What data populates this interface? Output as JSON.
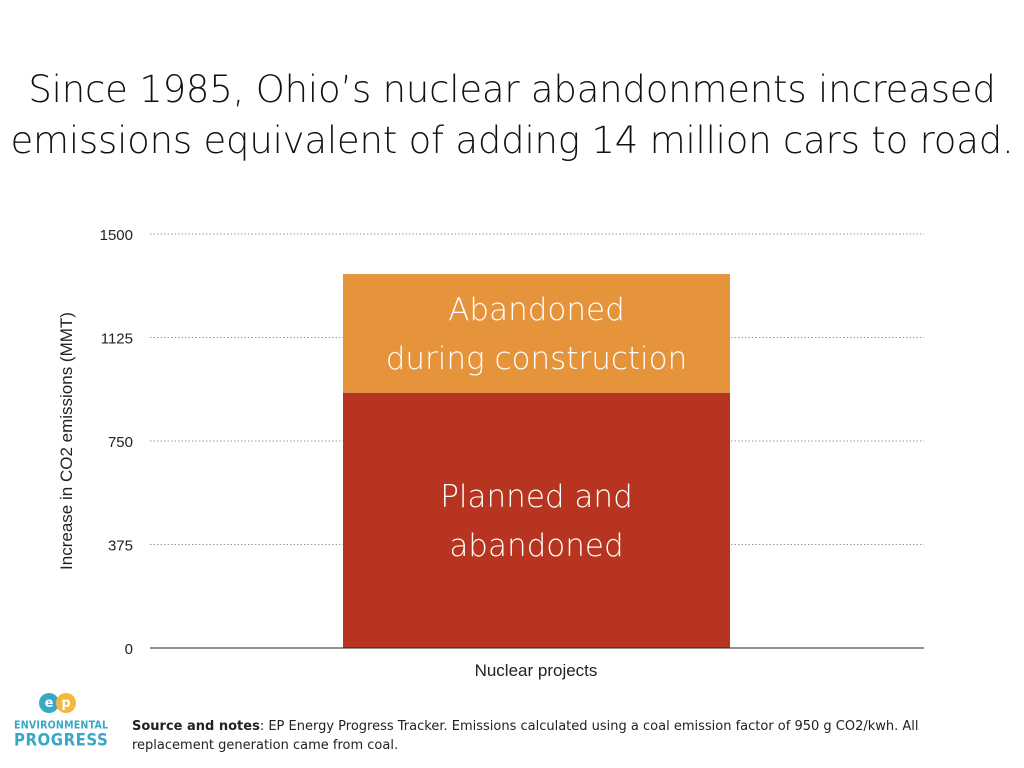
{
  "title": {
    "line1": "Since 1985, Ohio’s nuclear abandonments increased",
    "line2": "emissions equivalent of adding 14 million cars to road."
  },
  "chart_data": {
    "type": "bar",
    "stacked": true,
    "categories": [
      "Nuclear projects"
    ],
    "series": [
      {
        "name": "Planned and abandoned",
        "label_lines": [
          "Planned and",
          "abandoned"
        ],
        "values": [
          925
        ],
        "color": "#b73520"
      },
      {
        "name": "Abandoned during construction",
        "label_lines": [
          "Abandoned",
          "during construction"
        ],
        "values": [
          430
        ],
        "color": "#e5943c"
      }
    ],
    "xlabel": "Nuclear projects",
    "ylabel": "Increase in CO2 emissions (MMT)",
    "ylim": [
      0,
      1500
    ],
    "yticks": [
      0,
      375,
      750,
      1125,
      1500
    ],
    "ytick_labels": [
      "0",
      "375",
      "750",
      "1125",
      "1500"
    ],
    "grid": true,
    "label_color": "#ffffff"
  },
  "logo": {
    "mark": "ep",
    "line1": "ENVIRONMENTAL",
    "line2": "PROGRESS",
    "color": "#3aa7c6",
    "color2": "#f2b93b"
  },
  "source": {
    "label": "Source and notes",
    "text": ": EP Energy Progress Tracker. Emissions calculated using a coal emission factor of 950 g CO2/kwh. All replacement generation came from coal."
  }
}
